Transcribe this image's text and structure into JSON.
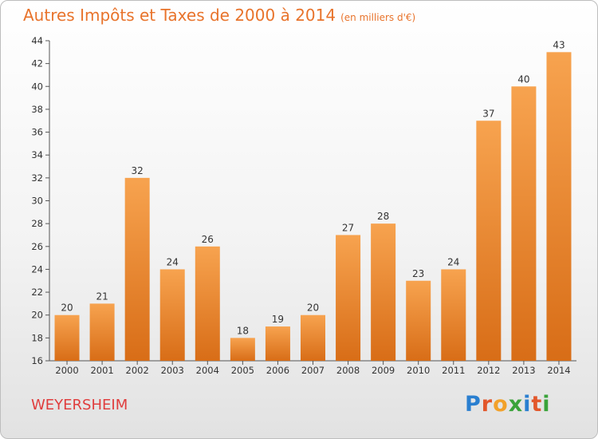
{
  "chart_data": {
    "type": "bar",
    "title": "Autres Impôts et Taxes de 2000 à 2014",
    "subtitle": "(en milliers d'€)",
    "categories": [
      "2000",
      "2001",
      "2002",
      "2003",
      "2004",
      "2005",
      "2006",
      "2007",
      "2008",
      "2009",
      "2010",
      "2011",
      "2012",
      "2013",
      "2014"
    ],
    "values": [
      20,
      21,
      32,
      24,
      26,
      18,
      19,
      20,
      27,
      28,
      23,
      24,
      37,
      40,
      43
    ],
    "ylim": [
      16,
      44
    ],
    "yticks": [
      16,
      18,
      20,
      22,
      24,
      26,
      28,
      30,
      32,
      34,
      36,
      38,
      40,
      42,
      44
    ],
    "grid": false,
    "bar_color": "#f08a2c"
  },
  "footer": {
    "commune": "WEYERSHEIM",
    "logo": "Proxiti"
  }
}
